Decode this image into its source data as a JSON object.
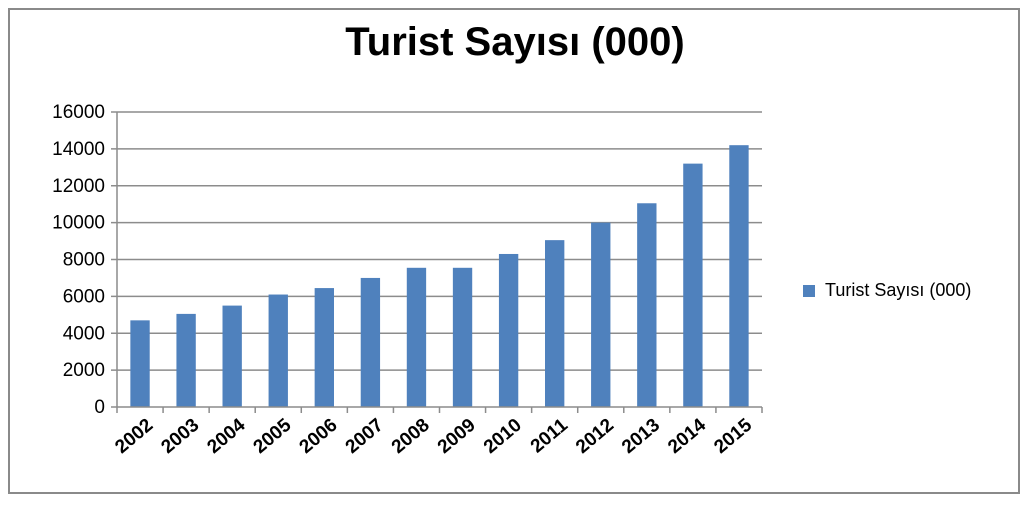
{
  "chart_data": {
    "type": "bar",
    "title": "Turist Sayısı (000)",
    "xlabel": "",
    "ylabel": "",
    "categories": [
      "2002",
      "2003",
      "2004",
      "2005",
      "2006",
      "2007",
      "2008",
      "2009",
      "2010",
      "2011",
      "2012",
      "2013",
      "2014",
      "2015"
    ],
    "series": [
      {
        "name": "Turist Sayısı (000)",
        "values": [
          4700,
          5050,
          5500,
          6100,
          6450,
          7000,
          7550,
          7550,
          8300,
          9050,
          10000,
          11050,
          13200,
          14200
        ]
      }
    ],
    "ylim": [
      0,
      16000
    ],
    "yticks": [
      0,
      2000,
      4000,
      6000,
      8000,
      10000,
      12000,
      14000,
      16000
    ],
    "grid": true,
    "legend_position": "right",
    "bar_color": "#4f81bd",
    "grid_color": "#8c8c8c"
  }
}
